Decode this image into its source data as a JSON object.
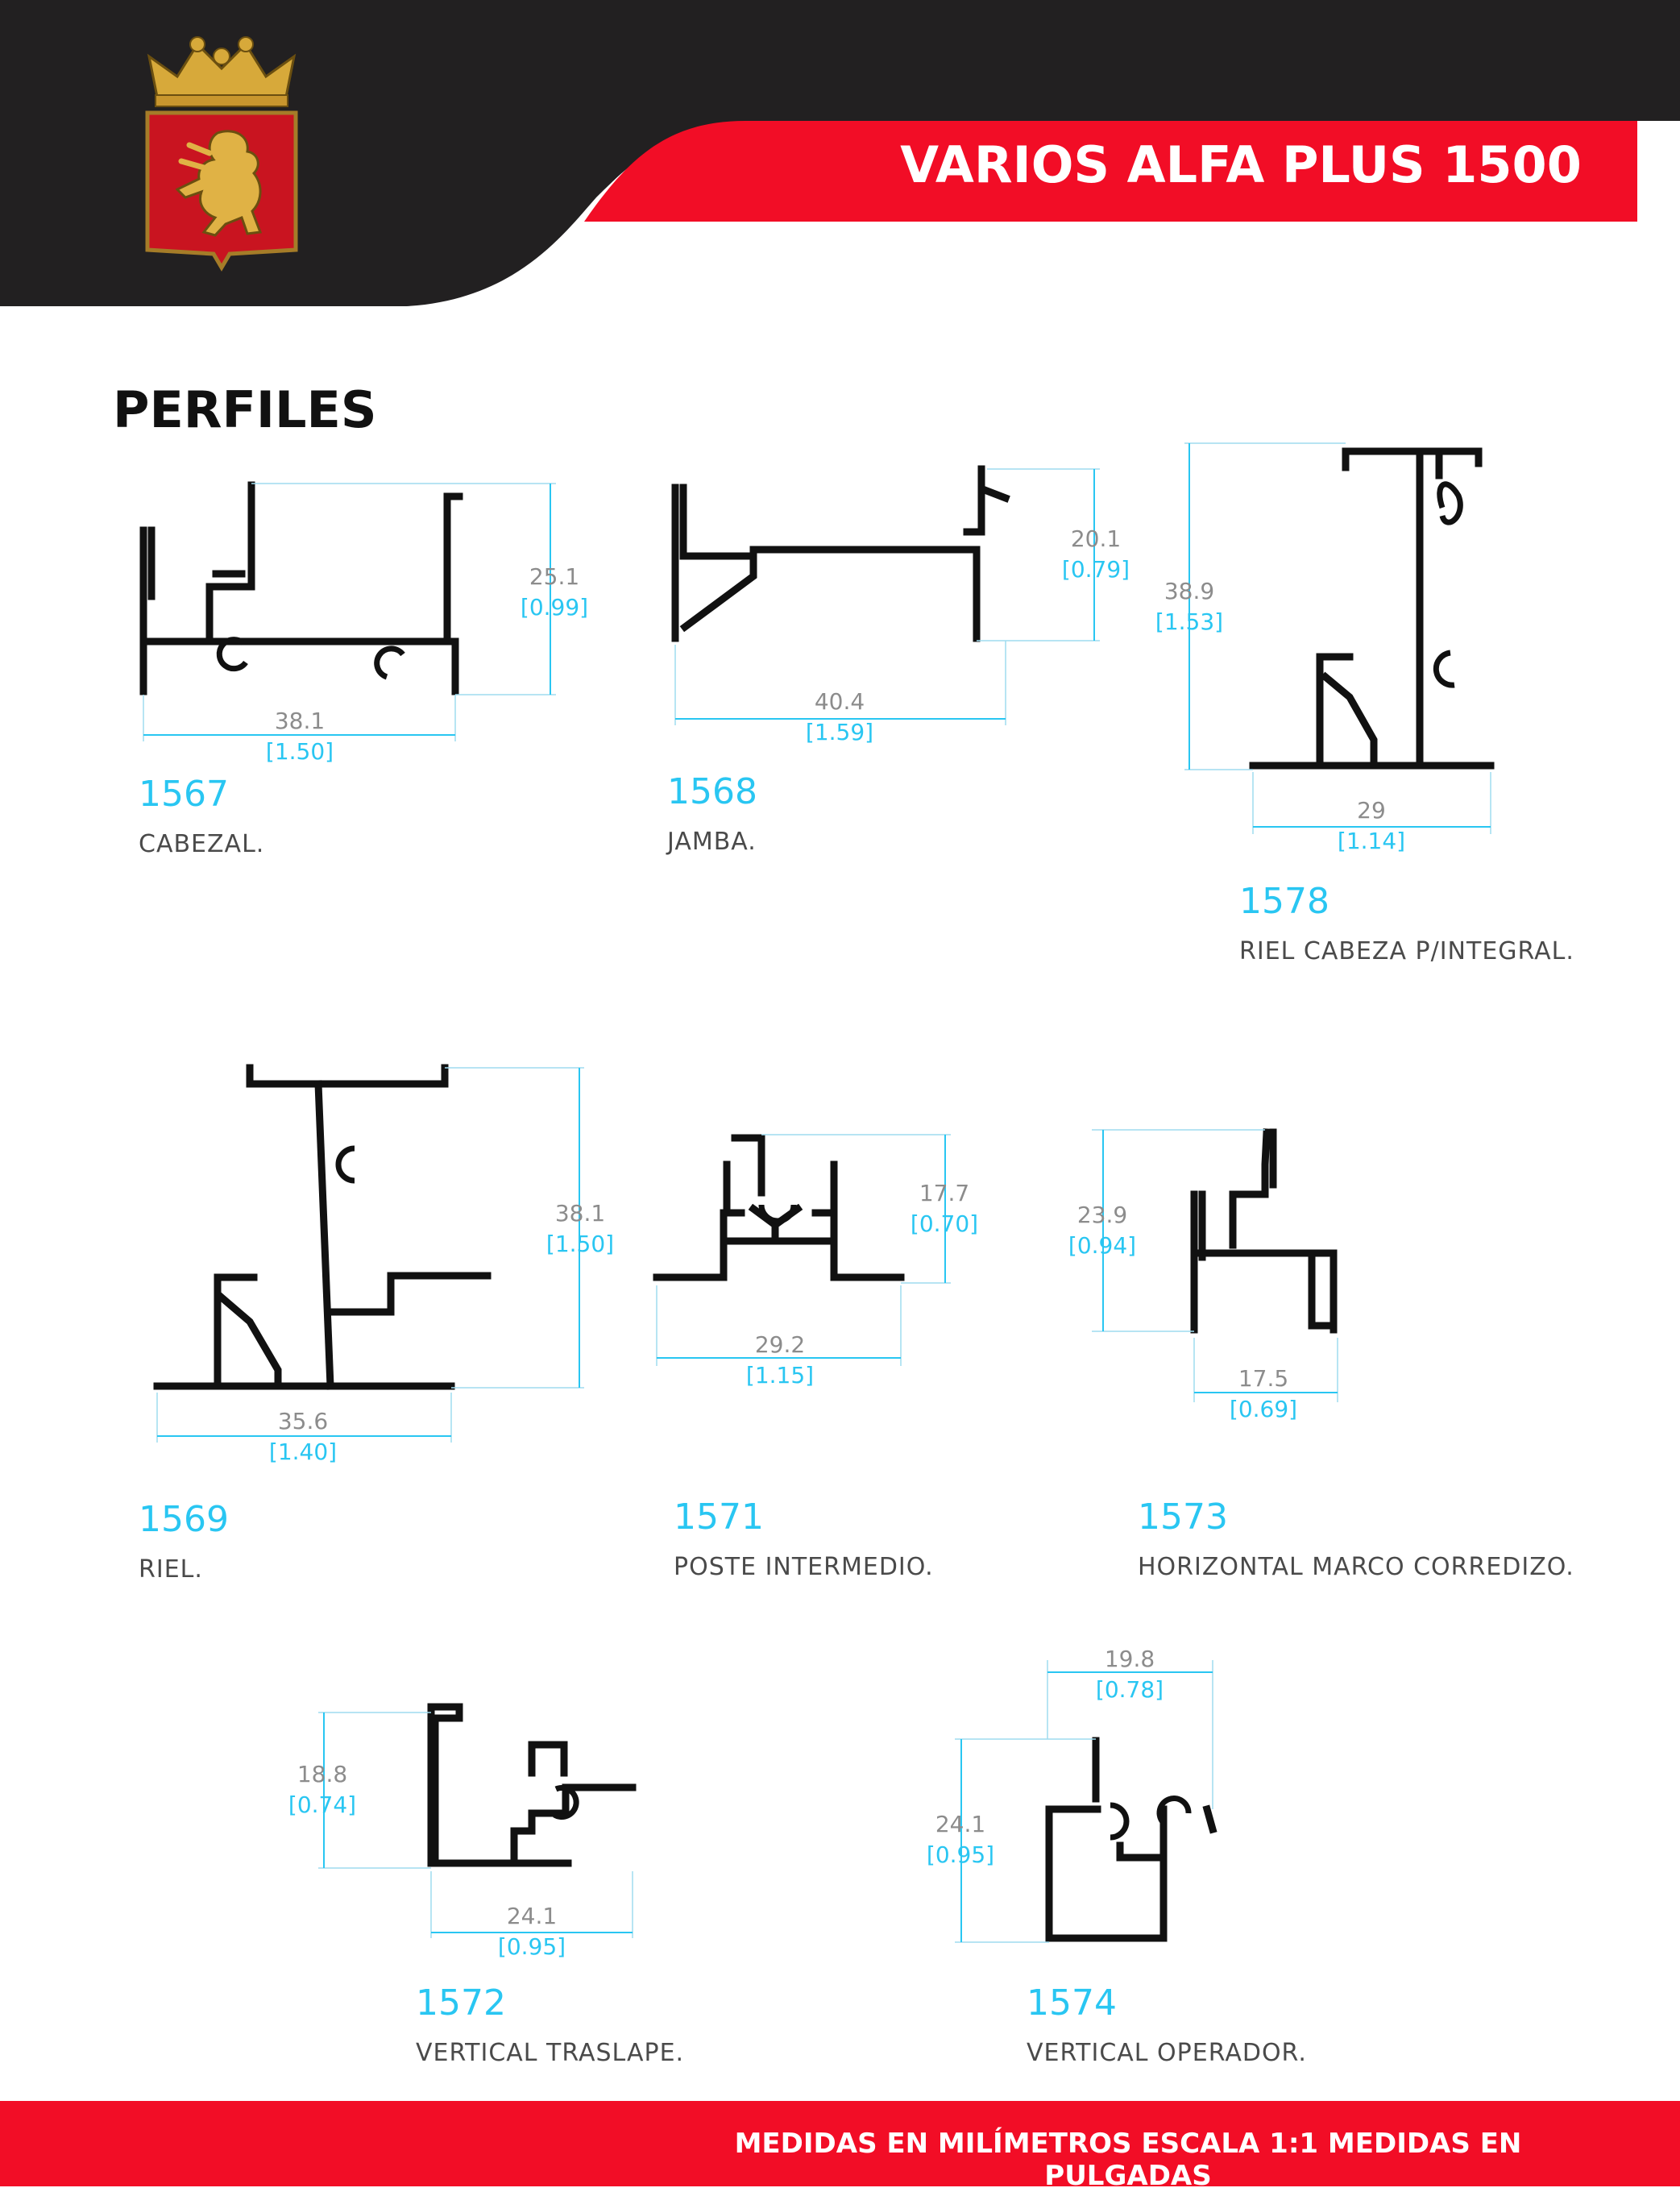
{
  "header": {
    "title": "VARIOS ALFA PLUS 1500"
  },
  "section": {
    "title": "PERFILES"
  },
  "colors": {
    "dark": "#222021",
    "red": "#f20d26",
    "accent": "#29c6f2",
    "profile": "#111111"
  },
  "logo": {
    "icon": "crowned-lion-shield-icon"
  },
  "profiles": [
    {
      "code": "1567",
      "name": "CABEZAL.",
      "width_mm": "38.1",
      "width_in": "[1.50]",
      "height_mm": "25.1",
      "height_in": "[0.99]"
    },
    {
      "code": "1568",
      "name": "JAMBA.",
      "width_mm": "40.4",
      "width_in": "[1.59]",
      "height_mm": "20.1",
      "height_in": "[0.79]"
    },
    {
      "code": "1578",
      "name": "RIEL CABEZA P/INTEGRAL.",
      "width_mm": "29",
      "width_in": "[1.14]",
      "height_mm": "38.9",
      "height_in": "[1.53]"
    },
    {
      "code": "1569",
      "name": "RIEL.",
      "width_mm": "35.6",
      "width_in": "[1.40]",
      "height_mm": "38.1",
      "height_in": "[1.50]"
    },
    {
      "code": "1571",
      "name": "POSTE INTERMEDIO.",
      "width_mm": "29.2",
      "width_in": "[1.15]",
      "height_mm": "17.7",
      "height_in": "[0.70]"
    },
    {
      "code": "1573",
      "name": "HORIZONTAL MARCO CORREDIZO.",
      "width_mm": "17.5",
      "width_in": "[0.69]",
      "height_mm": "23.9",
      "height_in": "[0.94]"
    },
    {
      "code": "1572",
      "name": "VERTICAL TRASLAPE.",
      "width_mm": "24.1",
      "width_in": "[0.95]",
      "height_mm": "18.8",
      "height_in": "[0.74]"
    },
    {
      "code": "1574",
      "name": "VERTICAL OPERADOR.",
      "width_mm": "19.8",
      "width_in": "[0.78]",
      "height_mm": "24.1",
      "height_in": "[0.95]"
    }
  ],
  "footer": {
    "text": "MEDIDAS EN MILÍMETROS ESCALA 1:1 MEDIDAS EN PULGADAS"
  }
}
